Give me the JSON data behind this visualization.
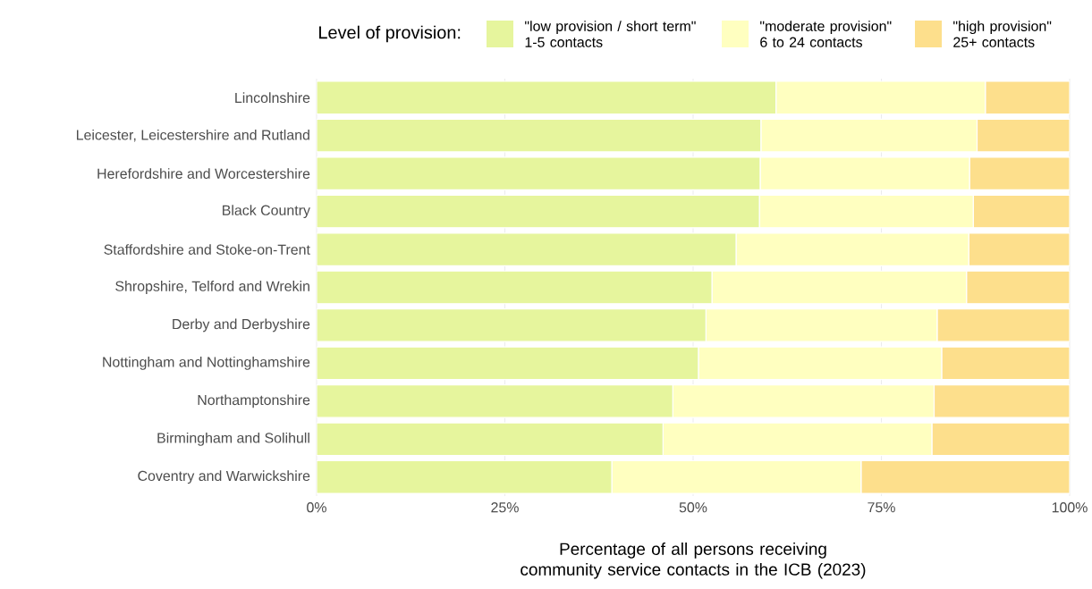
{
  "chart_data": {
    "type": "bar",
    "orientation": "horizontal",
    "stacked": true,
    "xlabel": "Percentage of all persons receiving community service contacts in the ICB (2023)",
    "legend_title": "Level of provision:",
    "legend": "top",
    "grid": "x",
    "categories": [
      "Lincolnshire",
      "Leicester, Leicestershire and Rutland",
      "Herefordshire and Worcestershire",
      "Black Country",
      "Staffordshire and Stoke-on-Trent",
      "Shropshire, Telford and Wrekin",
      "Derby and Derbyshire",
      "Nottingham and Nottinghamshire",
      "Northamptonshire",
      "Birmingham and Solihull",
      "Coventry and Warwickshire"
    ],
    "series": [
      {
        "name": "\"low provision / short term\" 1-5 contacts",
        "color": "#e6f59d",
        "values": [
          61.0,
          59.0,
          58.9,
          58.8,
          55.7,
          52.5,
          51.7,
          50.7,
          47.3,
          46.0,
          39.2
        ]
      },
      {
        "name": "\"moderate provision\" 6 to 24 contacts",
        "color": "#ffffc0",
        "values": [
          27.8,
          28.7,
          27.8,
          28.4,
          30.9,
          33.8,
          30.7,
          32.3,
          34.7,
          35.7,
          33.1
        ]
      },
      {
        "name": "\"high provision\" 25+ contacts",
        "color": "#fddf8c",
        "values": [
          11.2,
          12.3,
          13.3,
          12.8,
          13.4,
          13.7,
          17.6,
          17.0,
          18.0,
          18.3,
          27.7
        ]
      }
    ],
    "xlim": [
      0,
      100
    ],
    "xticks": [
      {
        "value": 0,
        "label": "0%"
      },
      {
        "value": 25,
        "label": "25%"
      },
      {
        "value": 50,
        "label": "50%"
      },
      {
        "value": 75,
        "label": "75%"
      },
      {
        "value": 100,
        "label": "100%"
      }
    ]
  }
}
